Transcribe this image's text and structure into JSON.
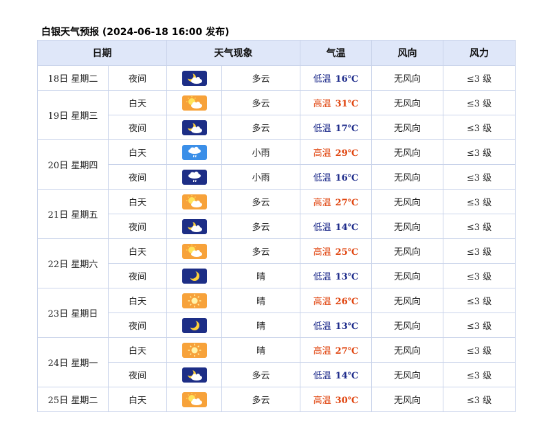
{
  "page_title": "白银天气预报 (2024-06-18 16:00 发布)",
  "headers": {
    "date": "日期",
    "weather": "天气现象",
    "temp": "气温",
    "wind_dir": "风向",
    "wind_force": "风力"
  },
  "days": [
    {
      "date": "18日 星期二",
      "rows": [
        {
          "period": "夜间",
          "icon": "night-cloudy-icon",
          "desc": "多云",
          "temp_label": "低温",
          "temp_value": "16℃",
          "temp_type": "low",
          "wind_dir": "无风向",
          "wind_force": "≤3 级"
        }
      ]
    },
    {
      "date": "19日 星期三",
      "rows": [
        {
          "period": "白天",
          "icon": "day-cloudy-icon",
          "desc": "多云",
          "temp_label": "高温",
          "temp_value": "31℃",
          "temp_type": "high",
          "wind_dir": "无风向",
          "wind_force": "≤3 级"
        },
        {
          "period": "夜间",
          "icon": "night-cloudy-icon",
          "desc": "多云",
          "temp_label": "低温",
          "temp_value": "17℃",
          "temp_type": "low",
          "wind_dir": "无风向",
          "wind_force": "≤3 级"
        }
      ]
    },
    {
      "date": "20日 星期四",
      "rows": [
        {
          "period": "白天",
          "icon": "day-light-rain-icon",
          "desc": "小雨",
          "temp_label": "高温",
          "temp_value": "29℃",
          "temp_type": "high",
          "wind_dir": "无风向",
          "wind_force": "≤3 级"
        },
        {
          "period": "夜间",
          "icon": "night-light-rain-icon",
          "desc": "小雨",
          "temp_label": "低温",
          "temp_value": "16℃",
          "temp_type": "low",
          "wind_dir": "无风向",
          "wind_force": "≤3 级"
        }
      ]
    },
    {
      "date": "21日 星期五",
      "rows": [
        {
          "period": "白天",
          "icon": "day-cloudy-icon",
          "desc": "多云",
          "temp_label": "高温",
          "temp_value": "27℃",
          "temp_type": "high",
          "wind_dir": "无风向",
          "wind_force": "≤3 级"
        },
        {
          "period": "夜间",
          "icon": "night-cloudy-icon",
          "desc": "多云",
          "temp_label": "低温",
          "temp_value": "14℃",
          "temp_type": "low",
          "wind_dir": "无风向",
          "wind_force": "≤3 级"
        }
      ]
    },
    {
      "date": "22日 星期六",
      "rows": [
        {
          "period": "白天",
          "icon": "day-cloudy-icon",
          "desc": "多云",
          "temp_label": "高温",
          "temp_value": "25℃",
          "temp_type": "high",
          "wind_dir": "无风向",
          "wind_force": "≤3 级"
        },
        {
          "period": "夜间",
          "icon": "night-clear-icon",
          "desc": "晴",
          "temp_label": "低温",
          "temp_value": "13℃",
          "temp_type": "low",
          "wind_dir": "无风向",
          "wind_force": "≤3 级"
        }
      ]
    },
    {
      "date": "23日 星期日",
      "rows": [
        {
          "period": "白天",
          "icon": "day-sunny-icon",
          "desc": "晴",
          "temp_label": "高温",
          "temp_value": "26℃",
          "temp_type": "high",
          "wind_dir": "无风向",
          "wind_force": "≤3 级"
        },
        {
          "period": "夜间",
          "icon": "night-clear-icon",
          "desc": "晴",
          "temp_label": "低温",
          "temp_value": "13℃",
          "temp_type": "low",
          "wind_dir": "无风向",
          "wind_force": "≤3 级"
        }
      ]
    },
    {
      "date": "24日 星期一",
      "rows": [
        {
          "period": "白天",
          "icon": "day-sunny-icon",
          "desc": "晴",
          "temp_label": "高温",
          "temp_value": "27℃",
          "temp_type": "high",
          "wind_dir": "无风向",
          "wind_force": "≤3 级"
        },
        {
          "period": "夜间",
          "icon": "night-cloudy-icon",
          "desc": "多云",
          "temp_label": "低温",
          "temp_value": "14℃",
          "temp_type": "low",
          "wind_dir": "无风向",
          "wind_force": "≤3 级"
        }
      ]
    },
    {
      "date": "25日 星期二",
      "rows": [
        {
          "period": "白天",
          "icon": "day-cloudy-icon",
          "desc": "多云",
          "temp_label": "高温",
          "temp_value": "30℃",
          "temp_type": "high",
          "wind_dir": "无风向",
          "wind_force": "≤3 级"
        }
      ]
    }
  ],
  "colors": {
    "header_bg": "#dfe7f9",
    "border": "#c9d3ea",
    "high_temp": "#e0440e",
    "low_temp": "#1c2a8a",
    "day_icon_bg": "#f7a23a",
    "night_icon_bg": "#1d2e86",
    "rain_icon_bg": "#3b8fe8"
  }
}
